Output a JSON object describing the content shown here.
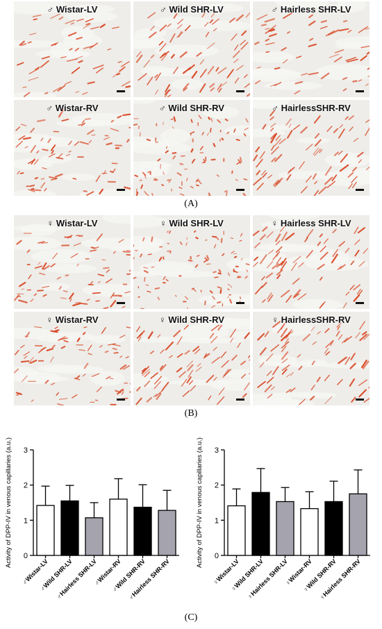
{
  "figure": {
    "panel_a": {
      "letter": "(A)",
      "tiles": [
        {
          "label": "♂ Wistar-LV",
          "style": "sparse"
        },
        {
          "label": "♂ Wild SHR-LV",
          "style": "diag"
        },
        {
          "label": "♂ Hairless SHR-LV",
          "style": "sparse"
        },
        {
          "label": "♂ Wistar-RV",
          "style": "mixed"
        },
        {
          "label": "♂ Wild SHR-RV",
          "style": "dots"
        },
        {
          "label": "♂ HairlessSHR-RV",
          "style": "diag"
        }
      ]
    },
    "panel_b": {
      "letter": "(B)",
      "tiles": [
        {
          "label": "♀ Wistar-LV",
          "style": "mixed"
        },
        {
          "label": "♀ Wild SHR-LV",
          "style": "dots"
        },
        {
          "label": "♀ Hairless SHR-LV",
          "style": "diag"
        },
        {
          "label": "♀ Wistar-RV",
          "style": "mixed"
        },
        {
          "label": "♀ Wild SHR-RV",
          "style": "diag"
        },
        {
          "label": "♀ HairlessSHR-RV",
          "style": "diag"
        }
      ]
    },
    "panel_c": {
      "letter": "(C)"
    },
    "colors": {
      "stain": "#d8421e",
      "bar_white": "#ffffff",
      "bar_black": "#000000",
      "bar_gray": "#a5a3ad"
    }
  },
  "chart_data": [
    {
      "type": "bar",
      "categories": [
        "♂Wistar-LV",
        "♂Wild SHR-LV",
        "♂Hairless SHR-LV",
        "♂Wistar-RV",
        "♂Wild SHR-RV",
        "♂Hairless SHR-RV"
      ],
      "values": [
        1.42,
        1.55,
        1.07,
        1.6,
        1.37,
        1.28
      ],
      "errors": [
        0.55,
        0.44,
        0.43,
        0.58,
        0.64,
        0.57
      ],
      "fills": [
        "white",
        "black",
        "gray",
        "white",
        "black",
        "gray"
      ],
      "ylabel": "Activity of DPP-IV in venous capillaries (a.u.)",
      "ylim": [
        0,
        3
      ],
      "yticks": [
        "0",
        "1",
        "2",
        "3"
      ]
    },
    {
      "type": "bar",
      "categories": [
        "♀Wistar-LV",
        "♀Wild SHR-LV",
        "♀Hairless SHR-LV",
        "♀Wistar-RV",
        "♀Wild SHR-RV",
        "♀Hairless SHR-RV"
      ],
      "values": [
        1.41,
        1.79,
        1.53,
        1.33,
        1.53,
        1.75
      ],
      "errors": [
        0.48,
        0.68,
        0.4,
        0.48,
        0.58,
        0.68
      ],
      "fills": [
        "white",
        "black",
        "gray",
        "white",
        "black",
        "gray"
      ],
      "ylabel": "Activity of DPP-IV in venous capillaries (a.u.)",
      "ylim": [
        0,
        3
      ],
      "yticks": [
        "0",
        "1",
        "2",
        "3"
      ]
    }
  ]
}
